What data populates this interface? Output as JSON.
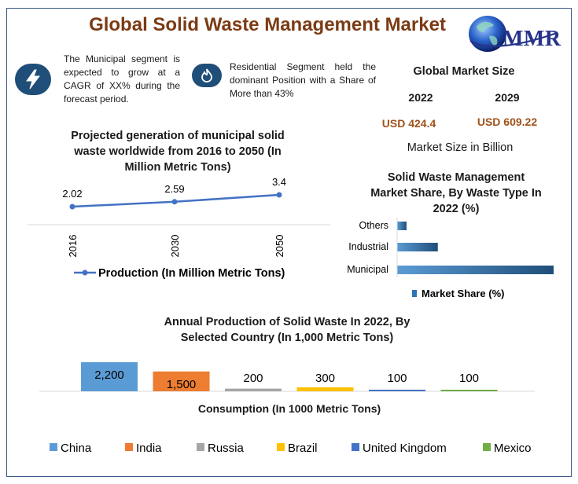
{
  "header": {
    "title": "Global Solid Waste Management Market",
    "logo_text": "MMR"
  },
  "notes": {
    "municipal": "The Municipal segment is expected to grow at a CAGR of XX% during the forecast period.",
    "residential": "Residential Segment held the dominant Position with a Share of More than 43%"
  },
  "market_size": {
    "title": "Global Market Size",
    "year_2022": "2022",
    "year_2029": "2029",
    "value_2022": "USD 424.4",
    "value_2029": "USD 609.22",
    "caption": "Market Size in Billion"
  },
  "colors": {
    "title_brown": "#7b3b14",
    "value_brown": "#a0521b",
    "line_blue": "#4472c4",
    "bar_blue": "#2e75b6",
    "china": "#5b9bd5",
    "india": "#ed7d31",
    "russia": "#a5a5a5",
    "brazil": "#ffc000",
    "uk": "#4472c4",
    "mexico": "#70ad47"
  },
  "chart_data": [
    {
      "type": "line",
      "title": "Projected generation of municipal solid waste worldwide from 2016 to 2050 (In Million Metric Tons)",
      "x": [
        "2016",
        "2030",
        "2050"
      ],
      "series": [
        {
          "name": "Production (In Million Metric Tons)",
          "values": [
            2.02,
            2.59,
            3.4
          ],
          "labels": [
            "2.02",
            "2.59",
            "3.4"
          ]
        }
      ],
      "legend": "bottom"
    },
    {
      "type": "bar",
      "orientation": "horizontal",
      "title": "Solid Waste Management Market Share, By Waste Type In 2022 (%)",
      "categories": [
        "Others",
        "Industrial",
        "Municipal"
      ],
      "series": [
        {
          "name": "Market Share (%)",
          "values": [
            6,
            26,
            100
          ]
        }
      ],
      "legend": "bottom"
    },
    {
      "type": "bar",
      "title": "Annual Production of Solid Waste In 2022, By Selected Country (In 1,000 Metric Tons)",
      "xlabel": "Consumption (In 1000 Metric Tons)",
      "categories": [
        "China",
        "India",
        "Russia",
        "Brazil",
        "United Kingdom",
        "Mexico"
      ],
      "values": [
        2200,
        1500,
        200,
        300,
        100,
        100
      ],
      "labels": [
        "2,200",
        "1,500",
        "200",
        "300",
        "100",
        "100"
      ],
      "legend": "bottom"
    }
  ]
}
